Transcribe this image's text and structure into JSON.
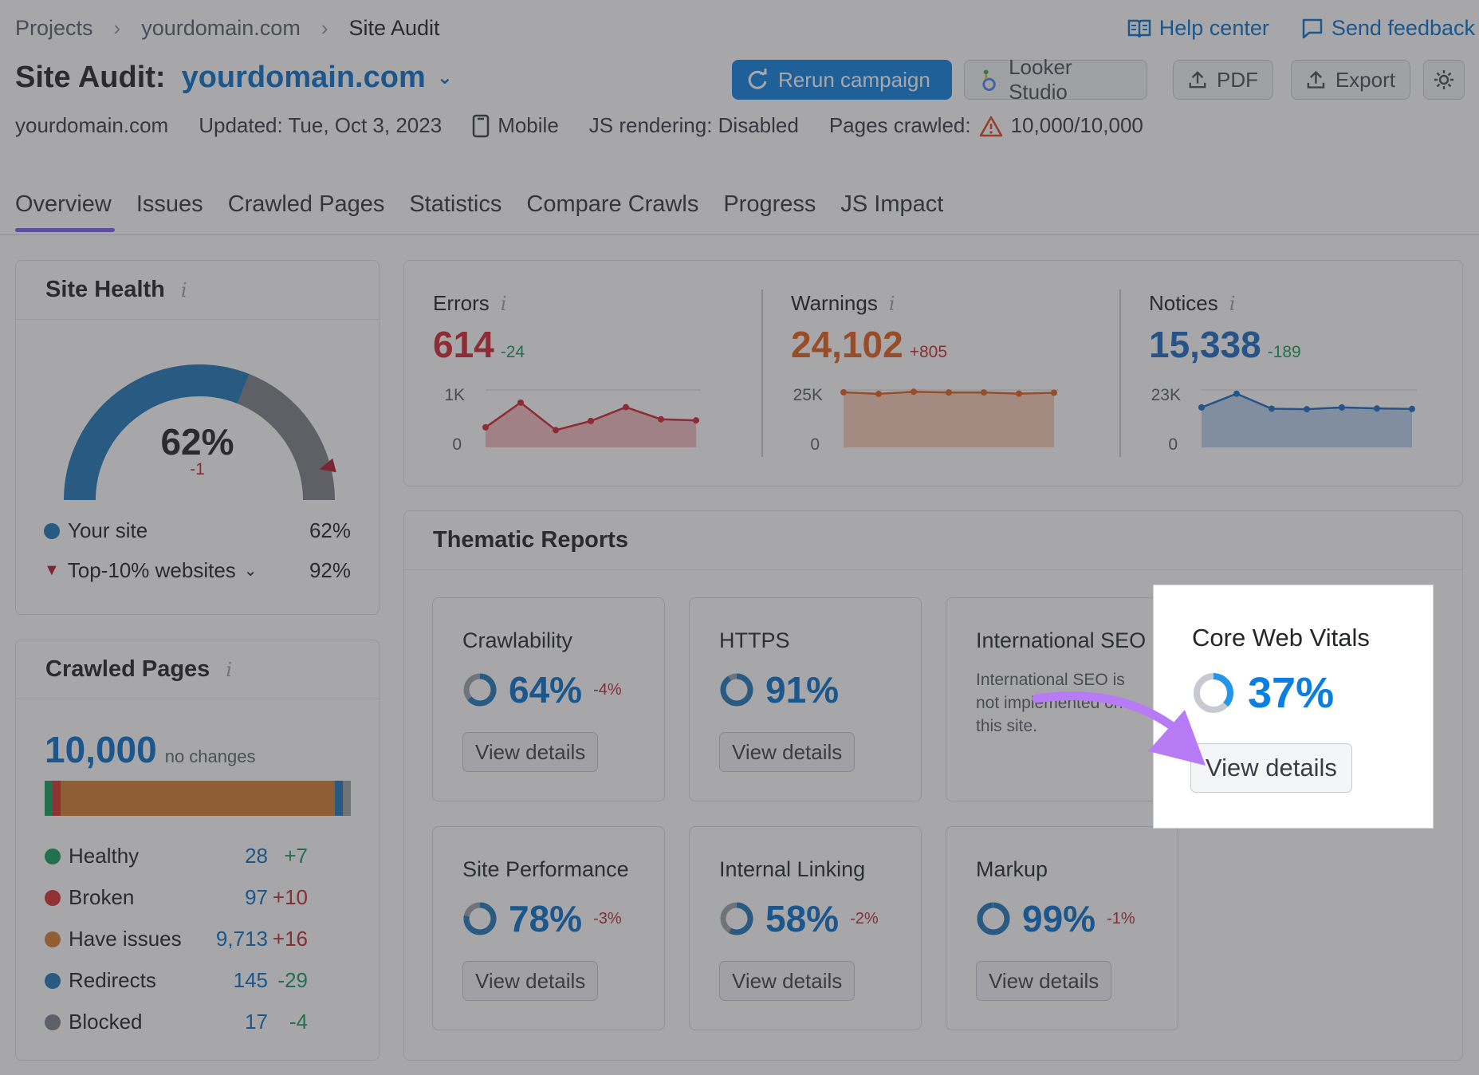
{
  "breadcrumb": [
    "Projects",
    "yourdomain.com",
    "Site Audit"
  ],
  "top_links": {
    "help": "Help center",
    "feedback": "Send feedback"
  },
  "title": {
    "prefix": "Site Audit:",
    "domain": "yourdomain.com"
  },
  "buttons": {
    "rerun": "Rerun campaign",
    "looker": "Looker Studio",
    "pdf": "PDF",
    "export": "Export"
  },
  "meta": {
    "domain": "yourdomain.com",
    "updated": "Updated: Tue, Oct 3, 2023",
    "device": "Mobile",
    "js": "JS rendering: Disabled",
    "pages_label": "Pages crawled:",
    "pages_value": "10,000/10,000"
  },
  "tabs": [
    "Overview",
    "Issues",
    "Crawled Pages",
    "Statistics",
    "Compare Crawls",
    "Progress",
    "JS Impact"
  ],
  "site_health": {
    "title": "Site Health",
    "percent": "62%",
    "change": "-1",
    "gauge_value": 62,
    "top10_value": 92,
    "legend": [
      {
        "label": "Your site",
        "value": "62%",
        "color": "#1a73b8"
      },
      {
        "label": "Top-10% websites",
        "value": "92%",
        "color": "#b0142a"
      }
    ]
  },
  "crawled_pages": {
    "title": "Crawled Pages",
    "total": "10,000",
    "note": "no changes",
    "rows": [
      {
        "label": "Healthy",
        "value": "28",
        "delta": "+7",
        "color": "#0e9b5a",
        "delta_color": "#0e9b5a"
      },
      {
        "label": "Broken",
        "value": "97",
        "delta": "+10",
        "color": "#d22b2b",
        "delta_color": "#c0252c"
      },
      {
        "label": "Have issues",
        "value": "9,713",
        "delta": "+16",
        "color": "#d37a2c",
        "delta_color": "#c0252c"
      },
      {
        "label": "Redirects",
        "value": "145",
        "delta": "-29",
        "color": "#1a73b8",
        "delta_color": "#0e9b5a"
      },
      {
        "label": "Blocked",
        "value": "17",
        "delta": "-4",
        "color": "#7b7f87",
        "delta_color": "#0e9b5a"
      }
    ]
  },
  "summary": [
    {
      "label": "Errors",
      "value": "614",
      "delta": "-24",
      "color": "#d01f2b",
      "delta_color": "#0e9b5a",
      "ymax": "1K",
      "ymin": "0",
      "series": [
        350,
        780,
        300,
        460,
        700,
        490,
        470
      ]
    },
    {
      "label": "Warnings",
      "value": "24,102",
      "delta": "+805",
      "color": "#e35b17",
      "delta_color": "#c0252c",
      "ymax": "25K",
      "ymin": "0",
      "series": [
        24000,
        23300,
        24200,
        23900,
        23900,
        23400,
        23800
      ]
    },
    {
      "label": "Notices",
      "value": "15,338",
      "delta": "-189",
      "color": "#1769c4",
      "delta_color": "#0e9b5a",
      "ymax": "23K",
      "ymin": "0",
      "series": [
        16000,
        21500,
        15500,
        15300,
        16000,
        15600,
        15400
      ]
    }
  ],
  "thematic": {
    "title": "Thematic Reports",
    "view_label": "View details",
    "cards": [
      {
        "name": "Crawlability",
        "value": "64%",
        "delta": "-4%",
        "fill": 64
      },
      {
        "name": "HTTPS",
        "value": "91%",
        "delta": "",
        "fill": 91
      },
      {
        "name": "International SEO",
        "value": "",
        "delta": "",
        "text": "International SEO is not implemented on this site."
      },
      {
        "name": "Core Web Vitals",
        "value": "37%",
        "delta": "",
        "fill": 37
      },
      {
        "name": "Site Performance",
        "value": "78%",
        "delta": "-3%",
        "fill": 78
      },
      {
        "name": "Internal Linking",
        "value": "58%",
        "delta": "-2%",
        "fill": 58
      },
      {
        "name": "Markup",
        "value": "99%",
        "delta": "-1%",
        "fill": 99
      }
    ]
  }
}
